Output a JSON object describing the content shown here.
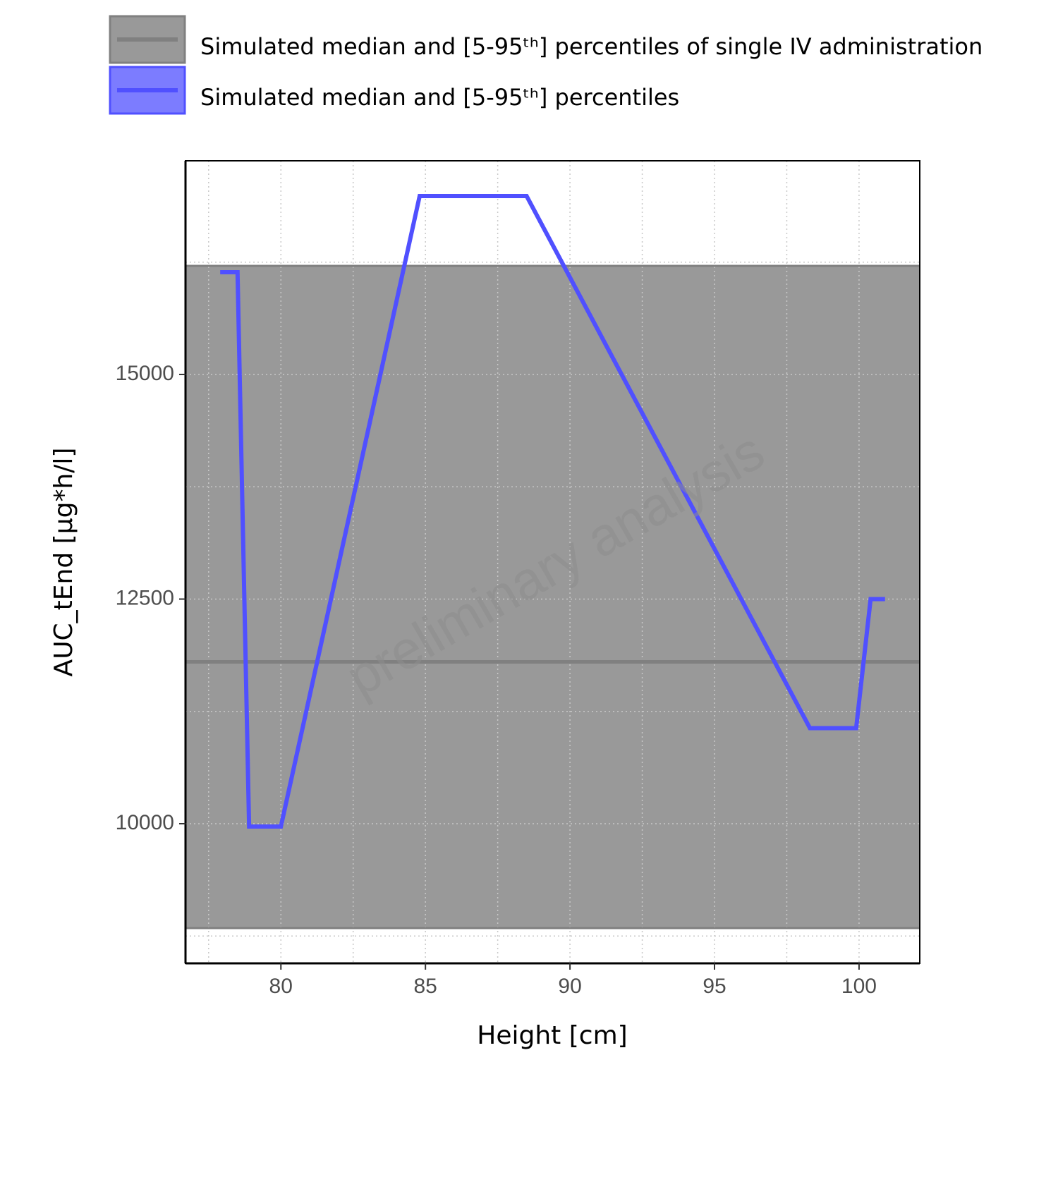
{
  "chart_data": {
    "type": "line",
    "xlabel": "Height [cm]",
    "ylabel": "AUC_tEnd [µg*h/l]",
    "watermark": "preliminary analysis",
    "xlim": [
      76.7,
      102.1
    ],
    "xticks": [
      80,
      85,
      90,
      95,
      100
    ],
    "xticks_minor": [
      77.5,
      82.5,
      87.5,
      92.5,
      97.5
    ],
    "ylim": [
      8446,
      17378
    ],
    "yticks": [
      10000,
      12500,
      15000
    ],
    "yticks_minor": [
      8750,
      11250,
      13750,
      16250
    ],
    "grid": true,
    "reference": {
      "name": "Simulated median and [5-95ᵗʰ] percentiles of single IV administration",
      "color": "#808080",
      "fill": "#999999",
      "lower": 8838,
      "median": 11801,
      "upper": 16209
    },
    "series": [
      {
        "name": "Simulated median and [5-95ᵗʰ] percentiles",
        "color": "#5050ff",
        "x": [
          77.9,
          78.5,
          78.9,
          80.0,
          84.8,
          88.5,
          98.3,
          99.9,
          100.4,
          100.9
        ],
        "values": [
          16138,
          16138,
          9969,
          9969,
          16986,
          16986,
          11064,
          11064,
          12500,
          12500
        ]
      }
    ]
  }
}
